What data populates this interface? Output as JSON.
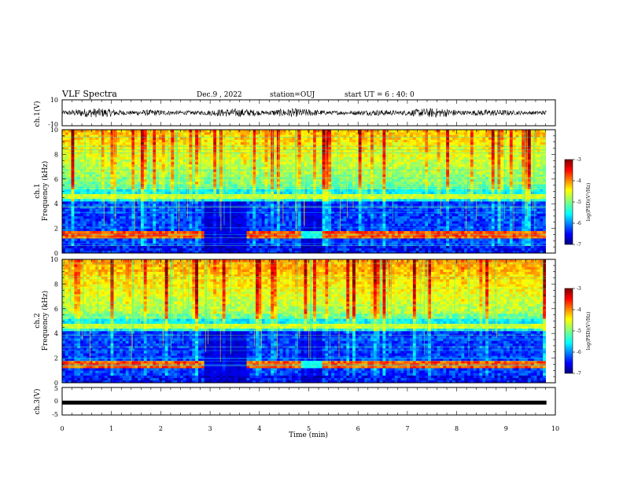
{
  "header": {
    "title": "VLF Spectra",
    "date": "Dec.9 , 2022",
    "station": "station=OUJ",
    "start_ut": "start UT = 6 : 40: 0"
  },
  "chart_data": [
    {
      "type": "line",
      "name": "ch1-waveform",
      "ylabel": "ch.1(V)",
      "ylim": [
        -10,
        10
      ],
      "yticks": [
        "10",
        "-10"
      ],
      "xlim": [
        0,
        10
      ],
      "note": "dense black waveform, amplitude roughly +/-4 V"
    },
    {
      "type": "heatmap",
      "name": "ch1-spectrogram",
      "ylabel": "ch.1\nFrequency (kHz)",
      "ylabel_lines": [
        "ch.1",
        "Frequency (kHz)"
      ],
      "ylim": [
        0,
        10
      ],
      "yticks": [
        "0",
        "2",
        "4",
        "6",
        "8",
        "10"
      ],
      "xlim": [
        0,
        9.82
      ],
      "colorbar": {
        "label": "log(PSD)(V²/Hz)",
        "ticks": [
          "-3",
          "-4",
          "-5",
          "-6",
          "-7"
        ],
        "range": [
          -7,
          -3
        ]
      }
    },
    {
      "type": "heatmap",
      "name": "ch2-spectrogram",
      "ylabel_lines": [
        "ch.2",
        "Frequency (kHz)"
      ],
      "ylim": [
        0,
        10
      ],
      "yticks": [
        "0",
        "2",
        "4",
        "6",
        "8",
        "10"
      ],
      "xlim": [
        0,
        9.82
      ],
      "colorbar": {
        "label": "log(PSD)(V²/Hz)",
        "ticks": [
          "-3",
          "-4",
          "-5",
          "-6",
          "-7"
        ],
        "range": [
          -7,
          -3
        ]
      }
    },
    {
      "type": "line",
      "name": "ch3-waveform",
      "ylabel": "ch.3(V)",
      "ylim": [
        -5,
        5
      ],
      "yticks": [
        "5",
        "0",
        "-5"
      ],
      "x": [
        0,
        9.82
      ],
      "y": [
        -0.5,
        -0.5
      ],
      "xlabel": "Time (min)",
      "xticks": [
        "0",
        "1",
        "2",
        "3",
        "4",
        "5",
        "6",
        "7",
        "8",
        "9",
        "10"
      ],
      "xlim": [
        0,
        10
      ]
    }
  ],
  "colors": {
    "jet": [
      "#00007f",
      "#0000ff",
      "#007fff",
      "#00ffff",
      "#7fff7f",
      "#ffff00",
      "#ff7f00",
      "#ff0000",
      "#7f0000"
    ]
  }
}
